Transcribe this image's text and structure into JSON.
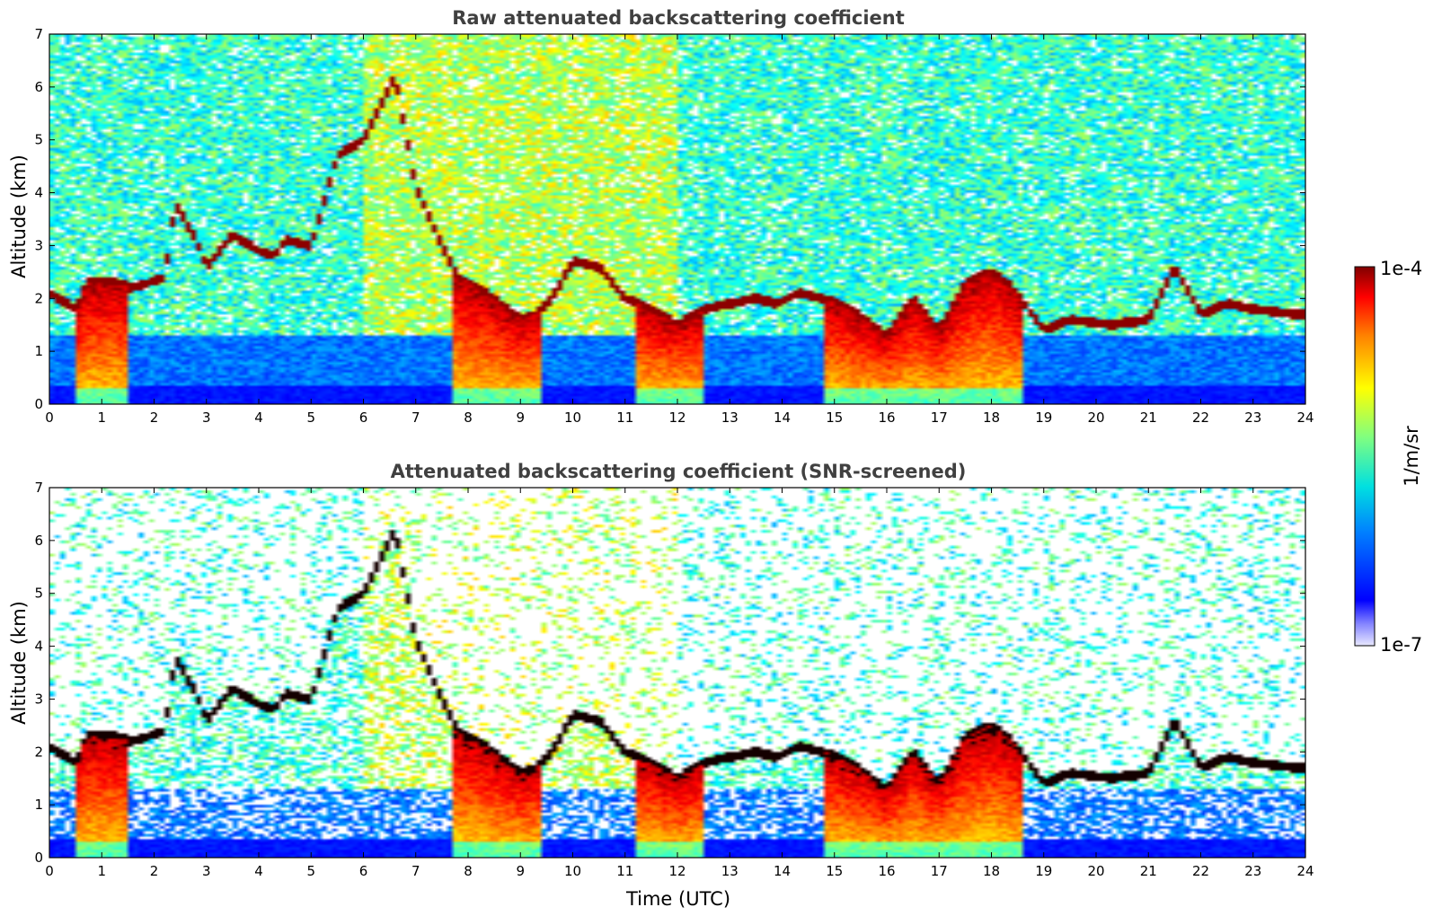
{
  "chart_data": [
    {
      "type": "heatmap",
      "title": "Raw attenuated backscattering coefficient",
      "xlabel": "",
      "ylabel": "Altitude (km)",
      "xlim": [
        0,
        24
      ],
      "ylim": [
        0,
        7
      ],
      "xticks": [
        "0",
        "1",
        "2",
        "3",
        "4",
        "5",
        "6",
        "7",
        "8",
        "9",
        "10",
        "11",
        "12",
        "13",
        "14",
        "15",
        "16",
        "17",
        "18",
        "19",
        "20",
        "21",
        "22",
        "23",
        "24"
      ],
      "yticks": [
        "0",
        "1",
        "2",
        "3",
        "4",
        "5",
        "6",
        "7"
      ],
      "screened": false,
      "cloud_layer": [
        [
          0,
          2.1
        ],
        [
          0.5,
          1.8
        ],
        [
          0.7,
          2.3
        ],
        [
          1.2,
          2.3
        ],
        [
          1.6,
          2.2
        ],
        [
          2.2,
          2.4
        ],
        [
          2.4,
          3.8
        ],
        [
          2.8,
          3.1
        ],
        [
          3.0,
          2.6
        ],
        [
          3.5,
          3.2
        ],
        [
          4.0,
          2.9
        ],
        [
          4.3,
          2.8
        ],
        [
          4.5,
          3.1
        ],
        [
          5.0,
          3.0
        ],
        [
          5.5,
          4.7
        ],
        [
          6.0,
          5.0
        ],
        [
          6.6,
          6.2
        ],
        [
          7.0,
          4.1
        ],
        [
          7.5,
          3.0
        ],
        [
          7.8,
          2.4
        ],
        [
          8.2,
          2.2
        ],
        [
          8.6,
          1.9
        ],
        [
          9.0,
          1.6
        ],
        [
          9.3,
          1.7
        ],
        [
          9.6,
          2.0
        ],
        [
          10.0,
          2.7
        ],
        [
          10.5,
          2.6
        ],
        [
          11.0,
          2.0
        ],
        [
          11.5,
          1.8
        ],
        [
          12.0,
          1.5
        ],
        [
          12.5,
          1.8
        ],
        [
          13.0,
          1.9
        ],
        [
          13.5,
          2.0
        ],
        [
          13.9,
          1.9
        ],
        [
          14.3,
          2.1
        ],
        [
          14.8,
          2.0
        ],
        [
          15.3,
          1.8
        ],
        [
          15.7,
          1.5
        ],
        [
          16.0,
          1.3
        ],
        [
          16.5,
          2.0
        ],
        [
          17.0,
          1.4
        ],
        [
          17.5,
          2.3
        ],
        [
          18.0,
          2.5
        ],
        [
          18.4,
          2.2
        ],
        [
          19.0,
          1.4
        ],
        [
          19.5,
          1.6
        ],
        [
          20.3,
          1.5
        ],
        [
          21.0,
          1.6
        ],
        [
          21.5,
          2.6
        ],
        [
          22.0,
          1.7
        ],
        [
          22.5,
          1.9
        ],
        [
          23.0,
          1.8
        ],
        [
          23.8,
          1.7
        ]
      ],
      "plumes": [
        [
          0.45,
          1.5
        ],
        [
          7.7,
          9.4
        ],
        [
          11.2,
          12.5
        ],
        [
          14.8,
          18.6
        ]
      ]
    },
    {
      "type": "heatmap",
      "title": "Attenuated backscattering coefficient (SNR-screened)",
      "xlabel": "Time (UTC)",
      "ylabel": "Altitude (km)",
      "xlim": [
        0,
        24
      ],
      "ylim": [
        0,
        7
      ],
      "xticks": [
        "0",
        "1",
        "2",
        "3",
        "4",
        "5",
        "6",
        "7",
        "8",
        "9",
        "10",
        "11",
        "12",
        "13",
        "14",
        "15",
        "16",
        "17",
        "18",
        "19",
        "20",
        "21",
        "22",
        "23",
        "24"
      ],
      "yticks": [
        "0",
        "1",
        "2",
        "3",
        "4",
        "5",
        "6",
        "7"
      ],
      "screened": true,
      "cloud_layer": [
        [
          0,
          2.1
        ],
        [
          0.5,
          1.8
        ],
        [
          0.7,
          2.3
        ],
        [
          1.2,
          2.3
        ],
        [
          1.6,
          2.2
        ],
        [
          2.2,
          2.4
        ],
        [
          2.4,
          3.8
        ],
        [
          2.8,
          3.1
        ],
        [
          3.0,
          2.6
        ],
        [
          3.5,
          3.2
        ],
        [
          4.0,
          2.9
        ],
        [
          4.3,
          2.8
        ],
        [
          4.5,
          3.1
        ],
        [
          5.0,
          3.0
        ],
        [
          5.5,
          4.7
        ],
        [
          6.0,
          5.0
        ],
        [
          6.6,
          6.2
        ],
        [
          7.0,
          4.1
        ],
        [
          7.5,
          3.0
        ],
        [
          7.8,
          2.4
        ],
        [
          8.2,
          2.2
        ],
        [
          8.6,
          1.9
        ],
        [
          9.0,
          1.6
        ],
        [
          9.3,
          1.7
        ],
        [
          9.6,
          2.0
        ],
        [
          10.0,
          2.7
        ],
        [
          10.5,
          2.6
        ],
        [
          11.0,
          2.0
        ],
        [
          11.5,
          1.8
        ],
        [
          12.0,
          1.5
        ],
        [
          12.5,
          1.8
        ],
        [
          13.0,
          1.9
        ],
        [
          13.5,
          2.0
        ],
        [
          13.9,
          1.9
        ],
        [
          14.3,
          2.1
        ],
        [
          14.8,
          2.0
        ],
        [
          15.3,
          1.8
        ],
        [
          15.7,
          1.5
        ],
        [
          16.0,
          1.3
        ],
        [
          16.5,
          2.0
        ],
        [
          17.0,
          1.4
        ],
        [
          17.5,
          2.3
        ],
        [
          18.0,
          2.5
        ],
        [
          18.4,
          2.2
        ],
        [
          19.0,
          1.4
        ],
        [
          19.5,
          1.6
        ],
        [
          20.3,
          1.5
        ],
        [
          21.0,
          1.6
        ],
        [
          21.5,
          2.6
        ],
        [
          22.0,
          1.7
        ],
        [
          22.5,
          1.9
        ],
        [
          23.0,
          1.8
        ],
        [
          23.8,
          1.7
        ]
      ],
      "plumes": [
        [
          0.45,
          1.5
        ],
        [
          7.7,
          9.4
        ],
        [
          11.2,
          12.5
        ],
        [
          14.8,
          18.6
        ]
      ]
    }
  ],
  "colorbar": {
    "label": "1/m/sr",
    "max_label": "1e-4",
    "min_label": "1e-7",
    "colormap": "jet",
    "scale": "log"
  },
  "colors": {
    "low": "#0000ff",
    "high": "#8b0000",
    "background": "#ffffff",
    "title": "#404040"
  }
}
